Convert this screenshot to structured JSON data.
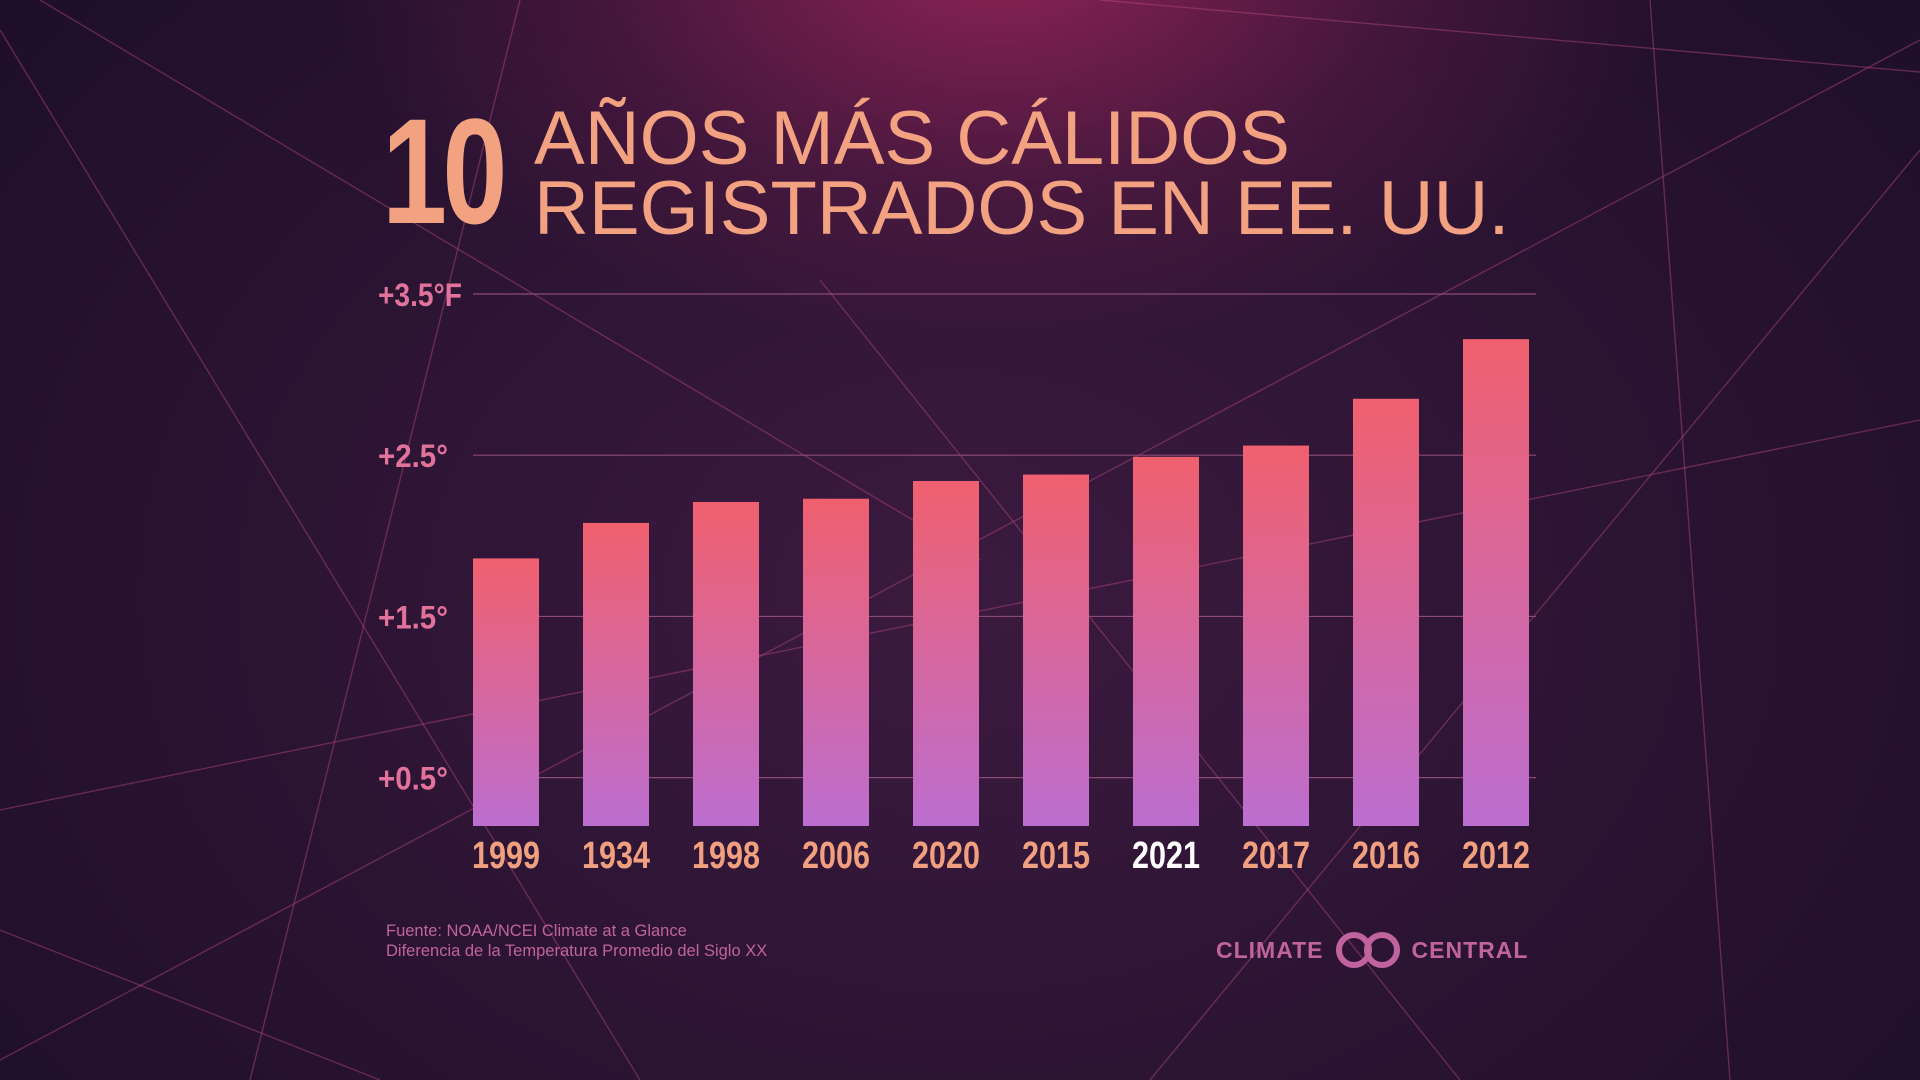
{
  "title": {
    "number": "10",
    "line1": "AÑOS MÁS CÁLIDOS",
    "line2": "REGISTRADOS EN EE. UU."
  },
  "source": {
    "line1": "Fuente: NOAA/NCEI Climate at a Glance",
    "line2": "Diferencia de la Temperatura Promedio del Siglo XX"
  },
  "logo": {
    "left_text": "CLIMATE",
    "right_text": "CENTRAL"
  },
  "colors": {
    "title": "#f3a281",
    "tick_label": "#e0729c",
    "year_label": "#f0a07f",
    "year_highlight": "#ffffff",
    "bar_top": "#f0606e",
    "bar_bottom": "#bc6ed0",
    "gridline": "#8c4a78",
    "source_text": "#c0639f"
  },
  "chart_data": {
    "type": "bar",
    "categories": [
      "1999",
      "1934",
      "1998",
      "2006",
      "2020",
      "2015",
      "2021",
      "2017",
      "2016",
      "2012"
    ],
    "values": [
      1.86,
      2.08,
      2.21,
      2.23,
      2.34,
      2.38,
      2.49,
      2.56,
      2.85,
      3.22
    ],
    "highlight": "2021",
    "unit": "°F",
    "yticks": [
      {
        "value": 0.5,
        "label": "+0.5°"
      },
      {
        "value": 1.5,
        "label": "+1.5°"
      },
      {
        "value": 2.5,
        "label": "+2.5°"
      },
      {
        "value": 3.5,
        "label": "+3.5°F"
      }
    ],
    "ylim": [
      0,
      3.5
    ],
    "grid": true
  }
}
